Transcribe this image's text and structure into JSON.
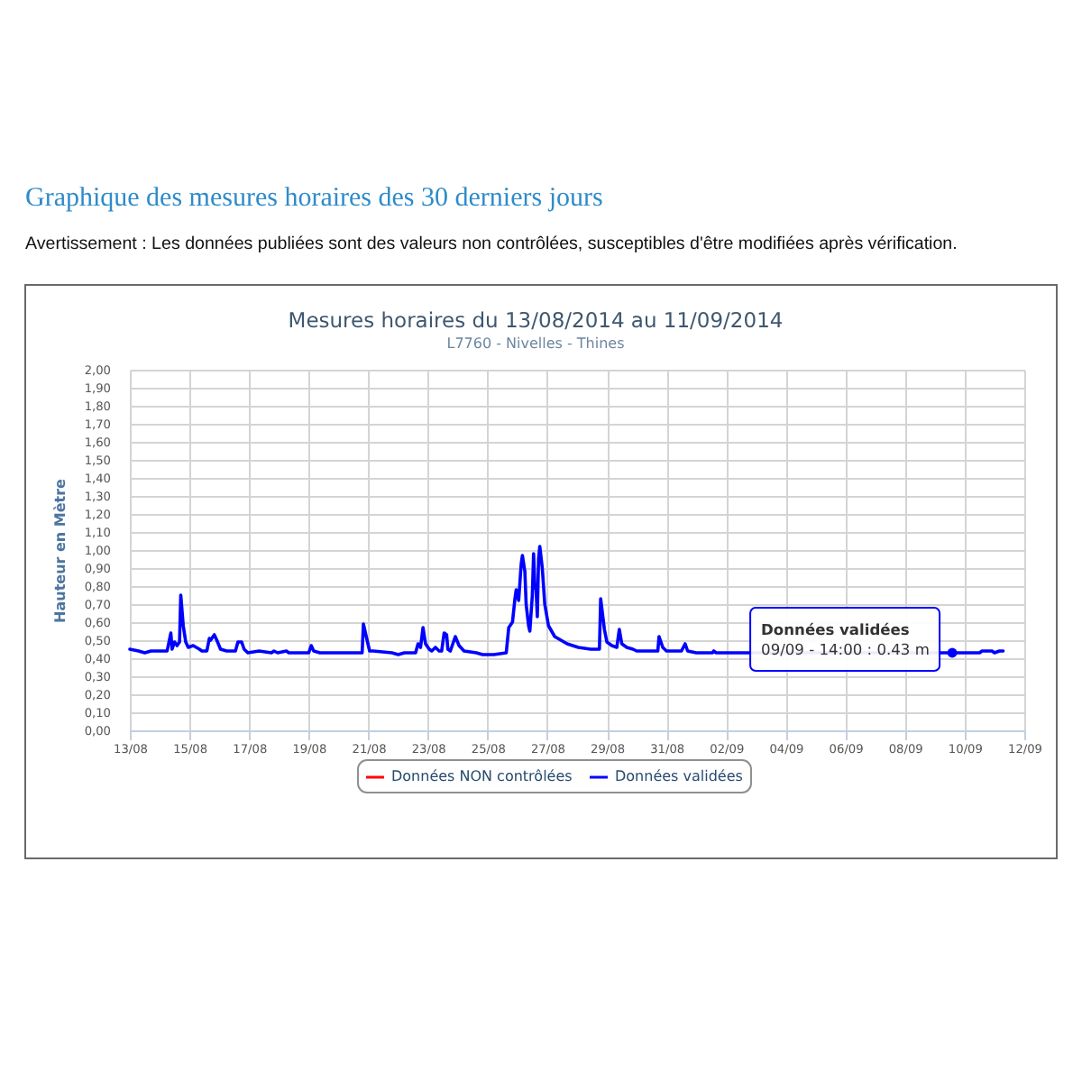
{
  "chart_data": {
    "type": "line",
    "title": "Mesures horaires du 13/08/2014 au 11/09/2014",
    "subtitle": "L7760 - Nivelles - Thines",
    "ylabel": "Hauteur en Mètre",
    "annotations": [
      "Graphique des mesures horaires des 30 derniers jours",
      "Avertissement : Les données publiées sont des valeurs non contrôlées, susceptibles d'être modifiées après vérification.",
      {
        "text": "Données validées\n09/09 - 14:00 : 0.43 m",
        "x": "2014-09-09T14:00",
        "y": 0.43
      }
    ],
    "xlim": [
      "2014-08-13",
      "2014-09-12"
    ],
    "xticks": [
      {
        "value": "2014-08-13",
        "label": "13/08"
      },
      {
        "value": "2014-08-15",
        "label": "15/08"
      },
      {
        "value": "2014-08-17",
        "label": "17/08"
      },
      {
        "value": "2014-08-19",
        "label": "19/08"
      },
      {
        "value": "2014-08-21",
        "label": "21/08"
      },
      {
        "value": "2014-08-23",
        "label": "23/08"
      },
      {
        "value": "2014-08-25",
        "label": "25/08"
      },
      {
        "value": "2014-08-27",
        "label": "27/08"
      },
      {
        "value": "2014-08-29",
        "label": "29/08"
      },
      {
        "value": "2014-08-31",
        "label": "31/08"
      },
      {
        "value": "2014-09-02",
        "label": "02/09"
      },
      {
        "value": "2014-09-04",
        "label": "04/09"
      },
      {
        "value": "2014-09-06",
        "label": "06/09"
      },
      {
        "value": "2014-09-08",
        "label": "08/09"
      },
      {
        "value": "2014-09-10",
        "label": "10/09"
      },
      {
        "value": "2014-09-12",
        "label": "12/09"
      }
    ],
    "ylim": [
      0,
      2
    ],
    "yticks": [
      {
        "value": 0,
        "label": "0,00"
      },
      {
        "value": 0.1,
        "label": "0,10"
      },
      {
        "value": 0.2,
        "label": "0,20"
      },
      {
        "value": 0.3,
        "label": "0,30"
      },
      {
        "value": 0.4,
        "label": "0,40"
      },
      {
        "value": 0.5,
        "label": "0,50"
      },
      {
        "value": 0.6,
        "label": "0,60"
      },
      {
        "value": 0.7,
        "label": "0,70"
      },
      {
        "value": 0.8,
        "label": "0,80"
      },
      {
        "value": 0.9,
        "label": "0,90"
      },
      {
        "value": 1,
        "label": "1,00"
      },
      {
        "value": 1.1,
        "label": "1,10"
      },
      {
        "value": 1.2,
        "label": "1,20"
      },
      {
        "value": 1.3,
        "label": "1,30"
      },
      {
        "value": 1.4,
        "label": "1,40"
      },
      {
        "value": 1.5,
        "label": "1,50"
      },
      {
        "value": 1.6,
        "label": "1,60"
      },
      {
        "value": 1.7,
        "label": "1,70"
      },
      {
        "value": 1.8,
        "label": "1,80"
      },
      {
        "value": 1.9,
        "label": "1,90"
      },
      {
        "value": 2,
        "label": "2,00"
      }
    ],
    "grid": true,
    "legend": "bottom",
    "series": [
      {
        "name": "Données NON contrôlées",
        "color": "#ff0000"
      },
      {
        "name": "Données validées",
        "color": "#0000ff",
        "x": [
          "2014-08-13T00:00",
          "2014-08-13T07:00",
          "2014-08-13T12:00",
          "2014-08-13T17:00",
          "2014-08-14T06:00",
          "2014-08-14T09:00",
          "2014-08-14T10:00",
          "2014-08-14T12:00",
          "2014-08-14T14:00",
          "2014-08-14T16:00",
          "2014-08-14T17:00",
          "2014-08-14T19:00",
          "2014-08-14T21:00",
          "2014-08-14T23:00",
          "2014-08-15T03:00",
          "2014-08-15T08:00",
          "2014-08-15T10:00",
          "2014-08-15T14:00",
          "2014-08-15T16:00",
          "2014-08-15T17:00",
          "2014-08-15T20:00",
          "2014-08-15T22:00",
          "2014-08-16T01:00",
          "2014-08-16T06:00",
          "2014-08-16T13:00",
          "2014-08-16T15:00",
          "2014-08-16T18:00",
          "2014-08-16T20:00",
          "2014-08-16T23:00",
          "2014-08-17T08:00",
          "2014-08-17T18:00",
          "2014-08-17T20:00",
          "2014-08-17T23:00",
          "2014-08-18T06:00",
          "2014-08-18T08:00",
          "2014-08-19T00:00",
          "2014-08-19T02:00",
          "2014-08-19T04:00",
          "2014-08-19T09:00",
          "2014-08-20T19:00",
          "2014-08-20T20:00",
          "2014-08-20T23:00",
          "2014-08-21T01:00",
          "2014-08-21T04:00",
          "2014-08-21T19:00",
          "2014-08-22T00:00",
          "2014-08-22T05:00",
          "2014-08-22T14:00",
          "2014-08-22T16:00",
          "2014-08-22T18:00",
          "2014-08-22T20:00",
          "2014-08-22T22:00",
          "2014-08-23T01:00",
          "2014-08-23T03:00",
          "2014-08-23T06:00",
          "2014-08-23T09:00",
          "2014-08-23T11:00",
          "2014-08-23T13:00",
          "2014-08-23T15:00",
          "2014-08-23T16:00",
          "2014-08-23T18:00",
          "2014-08-23T22:00",
          "2014-08-24T01:00",
          "2014-08-24T05:00",
          "2014-08-24T15:00",
          "2014-08-24T20:00",
          "2014-08-25T05:00",
          "2014-08-25T15:00",
          "2014-08-25T17:00",
          "2014-08-25T20:00",
          "2014-08-25T22:00",
          "2014-08-25T23:00",
          "2014-08-26T01:00",
          "2014-08-26T03:00",
          "2014-08-26T04:00",
          "2014-08-26T06:00",
          "2014-08-26T07:00",
          "2014-08-26T09:00",
          "2014-08-26T10:00",
          "2014-08-26T12:00",
          "2014-08-26T13:00",
          "2014-08-26T14:00",
          "2014-08-26T15:00",
          "2014-08-26T16:00",
          "2014-08-26T17:00",
          "2014-08-26T18:00",
          "2014-08-26T20:00",
          "2014-08-26T22:00",
          "2014-08-27T01:00",
          "2014-08-27T06:00",
          "2014-08-27T11:00",
          "2014-08-27T16:00",
          "2014-08-28T01:00",
          "2014-08-28T11:00",
          "2014-08-28T18:00",
          "2014-08-28T19:00",
          "2014-08-28T22:00",
          "2014-08-29T00:00",
          "2014-08-29T04:00",
          "2014-08-29T08:00",
          "2014-08-29T10:00",
          "2014-08-29T12:00",
          "2014-08-29T16:00",
          "2014-08-29T21:00",
          "2014-08-30T00:00",
          "2014-08-30T17:00",
          "2014-08-30T18:00",
          "2014-08-30T21:00",
          "2014-08-31T00:00",
          "2014-08-31T12:00",
          "2014-08-31T15:00",
          "2014-08-31T17:00",
          "2014-09-01T00:00",
          "2014-09-01T13:00",
          "2014-09-01T14:00",
          "2014-09-01T16:00",
          "2014-09-09T14:00",
          "2014-09-10T12:00",
          "2014-09-10T14:00",
          "2014-09-10T22:00",
          "2014-09-11T00:00",
          "2014-09-11T04:00",
          "2014-09-11T07:00"
        ],
        "values": [
          0.45,
          0.44,
          0.43,
          0.44,
          0.44,
          0.54,
          0.45,
          0.49,
          0.47,
          0.49,
          0.75,
          0.58,
          0.49,
          0.46,
          0.47,
          0.45,
          0.44,
          0.44,
          0.51,
          0.5,
          0.53,
          0.5,
          0.45,
          0.44,
          0.44,
          0.49,
          0.49,
          0.45,
          0.43,
          0.44,
          0.43,
          0.44,
          0.43,
          0.44,
          0.43,
          0.43,
          0.47,
          0.44,
          0.43,
          0.43,
          0.59,
          0.5,
          0.44,
          0.44,
          0.43,
          0.42,
          0.43,
          0.43,
          0.48,
          0.46,
          0.57,
          0.48,
          0.45,
          0.44,
          0.46,
          0.44,
          0.44,
          0.54,
          0.53,
          0.45,
          0.44,
          0.52,
          0.47,
          0.44,
          0.43,
          0.42,
          0.42,
          0.43,
          0.57,
          0.6,
          0.73,
          0.78,
          0.72,
          0.92,
          0.97,
          0.88,
          0.7,
          0.58,
          0.55,
          0.75,
          0.98,
          0.8,
          0.78,
          0.63,
          0.95,
          1.02,
          0.9,
          0.7,
          0.58,
          0.52,
          0.5,
          0.48,
          0.46,
          0.45,
          0.45,
          0.73,
          0.56,
          0.49,
          0.47,
          0.46,
          0.56,
          0.48,
          0.46,
          0.45,
          0.44,
          0.44,
          0.52,
          0.46,
          0.44,
          0.44,
          0.48,
          0.44,
          0.43,
          0.43,
          0.44,
          0.43,
          0.43,
          0.43,
          0.44,
          0.44,
          0.43,
          0.44,
          0.44
        ]
      }
    ]
  }
}
